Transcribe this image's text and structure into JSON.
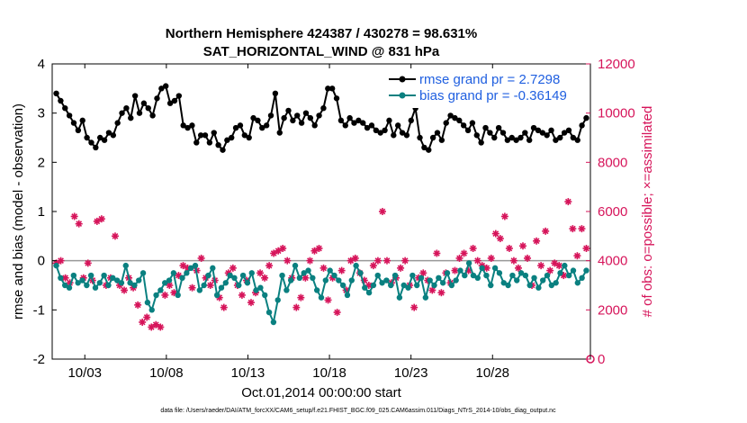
{
  "chart_data": {
    "type": "line",
    "title_line1": "Northern Hemisphere 424387 / 430278 = 98.631%",
    "title_line2": "SAT_HORIZONTAL_WIND @ 831 hPa",
    "ylabel_left": "rmse and bias (model - observation)",
    "ylabel_right": "# of obs: o=possible; ×=assimilated",
    "xlabel": "Oct.01,2014 00:00:00 start",
    "ylim_left": [
      -2,
      4
    ],
    "ylim_right": [
      0,
      12000
    ],
    "xlim": [
      0,
      33
    ],
    "yticks_left": [
      "-2",
      "-1",
      "0",
      "1",
      "2",
      "3",
      "4"
    ],
    "yticks_right": [
      "0",
      "2000",
      "4000",
      "6000",
      "8000",
      "10000",
      "12000"
    ],
    "xtick_values": [
      2,
      7,
      12,
      17,
      22,
      27
    ],
    "xtick_labels": [
      "10/03",
      "10/08",
      "10/13",
      "10/18",
      "10/23",
      "10/28"
    ],
    "colors": {
      "rmse": "#000000",
      "bias": "#0a8080",
      "obs": "#d6145a",
      "zero_line": "#999999"
    },
    "series": [
      {
        "name": "rmse grand pr = 2.7298",
        "axis": "left",
        "values": [
          3.4,
          3.25,
          3.1,
          2.95,
          2.8,
          2.65,
          2.85,
          2.5,
          2.4,
          2.3,
          2.5,
          2.45,
          2.6,
          2.55,
          2.8,
          3.0,
          3.1,
          2.9,
          3.35,
          3.0,
          3.2,
          3.1,
          2.95,
          3.3,
          3.5,
          3.55,
          3.2,
          3.25,
          3.35,
          2.75,
          2.7,
          2.75,
          2.4,
          2.55,
          2.55,
          2.4,
          2.6,
          2.35,
          2.25,
          2.45,
          2.5,
          2.7,
          2.75,
          2.55,
          2.5,
          2.9,
          2.85,
          2.7,
          2.75,
          2.95,
          3.4,
          2.6,
          2.9,
          3.05,
          2.85,
          2.95,
          2.8,
          3.0,
          2.9,
          2.75,
          2.95,
          3.1,
          3.5,
          3.5,
          3.3,
          2.85,
          2.75,
          2.9,
          2.8,
          2.85,
          2.8,
          2.7,
          2.75,
          2.65,
          2.6,
          2.65,
          2.85,
          2.55,
          2.75,
          2.6,
          2.55,
          2.85,
          3.1,
          2.5,
          2.3,
          2.25,
          2.5,
          2.6,
          2.45,
          2.8,
          2.95,
          2.9,
          2.85,
          2.75,
          2.65,
          2.8,
          2.55,
          2.4,
          2.7,
          2.6,
          2.5,
          2.7,
          2.6,
          2.45,
          2.5,
          2.45,
          2.5,
          2.6,
          2.45,
          2.7,
          2.65,
          2.6,
          2.55,
          2.65,
          2.45,
          2.5,
          2.6,
          2.65,
          2.5,
          2.45,
          2.75,
          2.9
        ]
      },
      {
        "name": "bias grand pr = -0.36149",
        "axis": "left",
        "values": [
          -0.1,
          -0.35,
          -0.5,
          -0.55,
          -0.3,
          -0.45,
          -0.4,
          -0.5,
          -0.3,
          -0.55,
          -0.45,
          -0.3,
          -0.5,
          -0.35,
          -0.4,
          -0.45,
          -0.1,
          -0.45,
          -0.5,
          -0.4,
          -0.25,
          -0.85,
          -1.0,
          -0.7,
          -0.6,
          -0.45,
          -0.4,
          -0.25,
          -0.7,
          -0.35,
          -0.25,
          -0.15,
          -0.1,
          -0.6,
          -0.5,
          -0.3,
          -0.15,
          -0.7,
          -0.55,
          -0.45,
          -0.3,
          -0.35,
          -0.5,
          -0.3,
          -0.45,
          -0.25,
          -0.6,
          -0.55,
          -0.7,
          -1.05,
          -1.25,
          -0.8,
          -0.3,
          -0.6,
          -0.4,
          -0.1,
          -0.35,
          -0.25,
          -0.2,
          -0.35,
          -0.6,
          -0.75,
          -0.4,
          -0.2,
          -0.3,
          -0.4,
          -0.5,
          -0.7,
          -0.4,
          -0.1,
          -0.25,
          -0.55,
          -0.65,
          -0.5,
          -0.3,
          -0.45,
          -0.4,
          -0.5,
          -0.3,
          -0.75,
          -0.5,
          -0.55,
          -0.3,
          -0.5,
          -0.35,
          -0.75,
          -0.4,
          -0.5,
          -0.35,
          -0.45,
          -0.25,
          -0.5,
          -0.4,
          -0.2,
          -0.3,
          -0.05,
          -0.3,
          -0.35,
          -0.15,
          -0.3,
          -0.5,
          -0.15,
          -0.25,
          -0.45,
          -0.5,
          -0.3,
          -0.4,
          -0.25,
          -0.3,
          -0.5,
          -0.35,
          -0.55,
          -0.4,
          -0.3,
          -0.5,
          -0.45,
          -0.25,
          -0.1,
          -0.3,
          -0.2,
          -0.45,
          -0.35,
          -0.2
        ]
      },
      {
        "name": "# of obs assimilated",
        "axis": "right",
        "values": [
          3900,
          4000,
          3300,
          3100,
          5800,
          5500,
          3300,
          3900,
          3200,
          5600,
          5700,
          3000,
          3300,
          5000,
          3000,
          2800,
          3300,
          2900,
          2200,
          1500,
          1700,
          1300,
          1400,
          1300,
          2600,
          3000,
          2700,
          3400,
          3800,
          3700,
          2900,
          3600,
          4100,
          3300,
          3000,
          3200,
          2500,
          2100,
          3500,
          3700,
          3000,
          2600,
          3200,
          2300,
          2700,
          3500,
          3300,
          3800,
          4300,
          4400,
          4500,
          4000,
          3300,
          2100,
          2500,
          3300,
          4000,
          4400,
          4500,
          3700,
          2400,
          3300,
          1900,
          3600,
          2800,
          4000,
          4100,
          3500,
          3200,
          3000,
          3800,
          4000,
          6000,
          4000,
          3100,
          3300,
          3700,
          4000,
          3000,
          2100,
          3300,
          3500,
          3200,
          2800,
          4300,
          2700,
          3500,
          3100,
          3600,
          4100,
          4300,
          3600,
          4500,
          4000,
          3800,
          3700,
          4100,
          5100,
          4900,
          5800,
          4500,
          4000,
          3700,
          4600,
          4100,
          3000,
          4800,
          3800,
          5200,
          3600,
          3900,
          3800,
          3400,
          6400,
          5300,
          4200,
          5300,
          4500
        ]
      }
    ],
    "footnote": "data file: /Users/raeder/DAI/ATM_forcXX/CAM6_setup/f.e21.FHIST_BGC.f09_025.CAM6assim.011/Diags_NTrS_2014-10/obs_diag_output.nc"
  }
}
